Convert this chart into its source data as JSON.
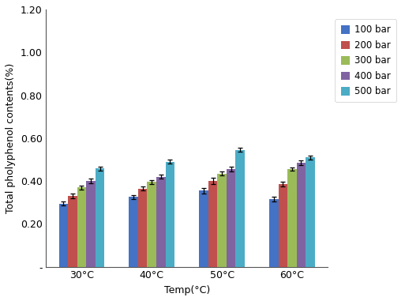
{
  "categories": [
    "30°C",
    "40°C",
    "50°C",
    "60°C"
  ],
  "xlabel": "Temp(°C)",
  "ylabel": "Total pholyphenol contents(%)",
  "ylim": [
    0,
    1.2
  ],
  "yticks": [
    0.0,
    0.2,
    0.4,
    0.6,
    0.8,
    1.0,
    1.2
  ],
  "ytick_labels": [
    "-",
    "0.20",
    "0.40",
    "0.60",
    "0.80",
    "1.00",
    "1.20"
  ],
  "series": [
    {
      "label": "100 bar",
      "color": "#4472C4",
      "values": [
        0.295,
        0.325,
        0.355,
        0.315
      ],
      "errors": [
        0.01,
        0.01,
        0.012,
        0.01
      ]
    },
    {
      "label": "200 bar",
      "color": "#C0504D",
      "values": [
        0.33,
        0.365,
        0.4,
        0.385
      ],
      "errors": [
        0.01,
        0.008,
        0.015,
        0.01
      ]
    },
    {
      "label": "300 bar",
      "color": "#9BBB59",
      "values": [
        0.37,
        0.395,
        0.435,
        0.455
      ],
      "errors": [
        0.01,
        0.01,
        0.01,
        0.008
      ]
    },
    {
      "label": "400 bar",
      "color": "#8064A2",
      "values": [
        0.4,
        0.42,
        0.455,
        0.485
      ],
      "errors": [
        0.01,
        0.01,
        0.01,
        0.01
      ]
    },
    {
      "label": "500 bar",
      "color": "#4BACC6",
      "values": [
        0.458,
        0.49,
        0.545,
        0.51
      ],
      "errors": [
        0.01,
        0.01,
        0.01,
        0.01
      ]
    }
  ],
  "bar_width": 0.13,
  "legend_fontsize": 8.5,
  "axis_label_fontsize": 9,
  "tick_fontsize": 9,
  "figure_background": "#ffffff",
  "plot_background": "#ffffff"
}
